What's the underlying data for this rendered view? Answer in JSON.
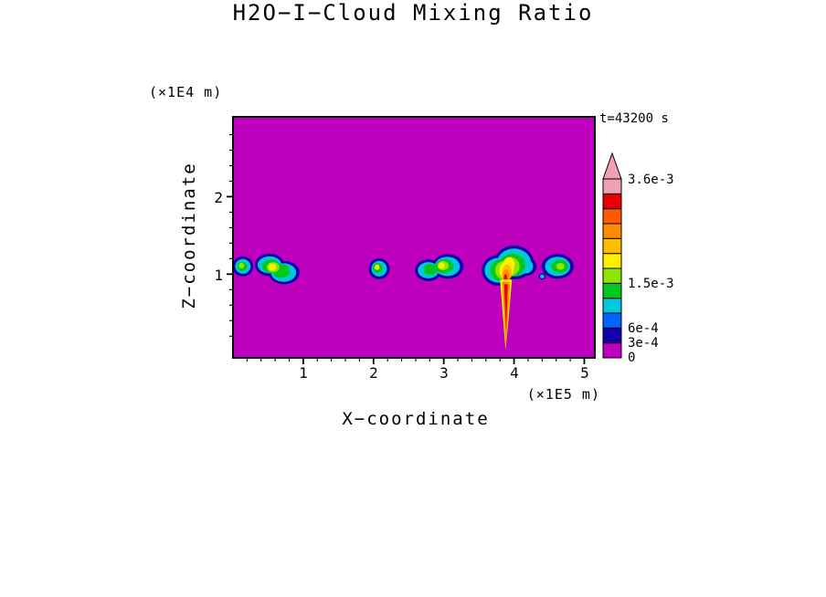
{
  "page": {
    "background": "#FFFFFF"
  },
  "chart_data": {
    "type": "heatmap",
    "title": "H2O−I−Cloud Mixing Ratio",
    "xlabel": "X−coordinate",
    "ylabel": "Z−coordinate",
    "x_units_label": "(×1E5 m)",
    "y_units_label": "(×1E4 m)",
    "time_label": "t=43200 s",
    "x_ticks": [
      "1",
      "2",
      "3",
      "4",
      "5"
    ],
    "y_ticks": [
      "1",
      "2"
    ],
    "xlim": [
      0,
      5.15
    ],
    "zlim": [
      -0.08,
      3.03
    ],
    "grid": false,
    "background_value": 0,
    "background_color": "#BE00BE",
    "colorbar": {
      "units": "mixing ratio",
      "levels": [
        0,
        0.0003,
        0.0006,
        0.0009,
        0.0012,
        0.0015,
        0.0018,
        0.0021,
        0.0024,
        0.0027,
        0.003,
        0.0033,
        0.0036
      ],
      "colors": [
        "#BE00BE",
        "#1400AA",
        "#0064FF",
        "#00C8DC",
        "#00C81E",
        "#8CE600",
        "#FFF000",
        "#FFBE00",
        "#FF8C00",
        "#FF5A00",
        "#E60000",
        "#F0A0B4"
      ],
      "over_color": "#F0A0B4",
      "labels": [
        "3.6e-3",
        "1.5e-3",
        "6e-4",
        "3e-4",
        "0"
      ]
    },
    "clouds": [
      {
        "name": "cloud-1",
        "shapes": [
          {
            "e": [
              0.14,
              1.1,
              0.15,
              0.13,
              "#1400AA"
            ]
          },
          {
            "e": [
              0.14,
              1.1,
              0.11,
              0.095,
              "#00C8DC"
            ]
          },
          {
            "e": [
              0.13,
              1.1,
              0.07,
              0.06,
              "#00C81E"
            ]
          },
          {
            "e": [
              0.12,
              1.11,
              0.04,
              0.035,
              "#8CE600"
            ]
          }
        ]
      },
      {
        "name": "cloud-2",
        "shapes": [
          {
            "e": [
              0.52,
              1.12,
              0.21,
              0.145,
              "#1400AA"
            ]
          },
          {
            "e": [
              0.73,
              1.02,
              0.22,
              0.15,
              "#1400AA"
            ]
          },
          {
            "e": [
              0.52,
              1.12,
              0.17,
              0.11,
              "#00C8DC"
            ]
          },
          {
            "e": [
              0.72,
              1.02,
              0.18,
              0.12,
              "#00C8DC"
            ]
          },
          {
            "e": [
              0.54,
              1.1,
              0.13,
              0.085,
              "#00C81E"
            ]
          },
          {
            "e": [
              0.69,
              1.04,
              0.12,
              0.09,
              "#00C81E"
            ]
          },
          {
            "e": [
              0.57,
              1.09,
              0.09,
              0.065,
              "#8CE600"
            ]
          },
          {
            "e": [
              0.56,
              1.09,
              0.055,
              0.045,
              "#FFF000"
            ]
          }
        ]
      },
      {
        "name": "cloud-3",
        "shapes": [
          {
            "e": [
              2.08,
              1.07,
              0.15,
              0.135,
              "#1400AA"
            ]
          },
          {
            "e": [
              2.08,
              1.07,
              0.11,
              0.1,
              "#00C8DC"
            ]
          },
          {
            "e": [
              2.06,
              1.08,
              0.07,
              0.065,
              "#00C81E"
            ]
          },
          {
            "e": [
              2.05,
              1.09,
              0.035,
              0.035,
              "#FFF000"
            ]
          }
        ]
      },
      {
        "name": "cloud-4",
        "shapes": [
          {
            "e": [
              2.78,
              1.05,
              0.19,
              0.14,
              "#1400AA"
            ]
          },
          {
            "e": [
              3.06,
              1.1,
              0.22,
              0.16,
              "#1400AA"
            ]
          },
          {
            "e": [
              2.78,
              1.05,
              0.15,
              0.105,
              "#00C8DC"
            ]
          },
          {
            "e": [
              3.05,
              1.1,
              0.18,
              0.125,
              "#00C8DC"
            ]
          },
          {
            "e": [
              2.81,
              1.06,
              0.1,
              0.07,
              "#00C81E"
            ]
          },
          {
            "e": [
              3.01,
              1.1,
              0.13,
              0.09,
              "#00C81E"
            ]
          },
          {
            "e": [
              2.99,
              1.11,
              0.08,
              0.06,
              "#8CE600"
            ]
          },
          {
            "e": [
              2.97,
              1.11,
              0.045,
              0.04,
              "#FFF000"
            ]
          }
        ]
      },
      {
        "name": "cloud-5-main-cell",
        "shapes": [
          {
            "e": [
              3.78,
              1.05,
              0.24,
              0.2,
              "#1400AA"
            ]
          },
          {
            "e": [
              4.0,
              1.15,
              0.28,
              0.22,
              "#1400AA"
            ]
          },
          {
            "e": [
              4.18,
              1.1,
              0.14,
              0.12,
              "#1400AA"
            ]
          },
          {
            "e": [
              3.78,
              1.05,
              0.2,
              0.16,
              "#00C8DC"
            ]
          },
          {
            "e": [
              4.0,
              1.15,
              0.24,
              0.18,
              "#00C8DC"
            ]
          },
          {
            "e": [
              4.17,
              1.1,
              0.1,
              0.09,
              "#00C8DC"
            ]
          },
          {
            "e": [
              3.82,
              1.05,
              0.16,
              0.14,
              "#00C81E"
            ]
          },
          {
            "e": [
              3.98,
              1.12,
              0.18,
              0.15,
              "#00C81E"
            ]
          },
          {
            "e": [
              3.86,
              1.05,
              0.13,
              0.12,
              "#8CE600"
            ]
          },
          {
            "e": [
              3.95,
              1.1,
              0.13,
              0.12,
              "#8CE600"
            ]
          },
          {
            "e": [
              3.89,
              1.05,
              0.1,
              0.11,
              "#FFF000"
            ]
          },
          {
            "e": [
              3.93,
              1.12,
              0.08,
              0.1,
              "#FFF000"
            ]
          },
          {
            "e": [
              3.9,
              1.02,
              0.07,
              0.1,
              "#FFBE00"
            ]
          },
          {
            "e": [
              3.89,
              0.98,
              0.05,
              0.08,
              "#FF8C00"
            ]
          },
          {
            "e": [
              3.88,
              0.95,
              0.025,
              0.05,
              "#E60000"
            ]
          },
          {
            "p": [
              [
                3.8,
                0.93
              ],
              [
                3.97,
                0.93
              ],
              [
                3.92,
                0.4
              ],
              [
                3.88,
                0.02
              ]
            ],
            "c": "#FFF000"
          },
          {
            "p": [
              [
                3.83,
                0.9
              ],
              [
                3.945,
                0.9
              ],
              [
                3.91,
                0.42
              ],
              [
                3.885,
                0.06
              ]
            ],
            "c": "#FF8C00"
          },
          {
            "p": [
              [
                3.86,
                0.87
              ],
              [
                3.91,
                0.87
              ],
              [
                3.895,
                0.45
              ],
              [
                3.888,
                0.25
              ]
            ],
            "c": "#E60000"
          }
        ]
      },
      {
        "name": "cloud-6",
        "shapes": [
          {
            "e": [
              4.4,
              0.97,
              0.05,
              0.04,
              "#1400AA"
            ]
          },
          {
            "e": [
              4.4,
              0.97,
              0.03,
              0.025,
              "#00C8DC"
            ]
          },
          {
            "e": [
              4.62,
              1.1,
              0.23,
              0.16,
              "#1400AA"
            ]
          },
          {
            "e": [
              4.62,
              1.1,
              0.18,
              0.125,
              "#00C8DC"
            ]
          },
          {
            "e": [
              4.65,
              1.1,
              0.12,
              0.085,
              "#00C81E"
            ]
          },
          {
            "e": [
              4.66,
              1.1,
              0.06,
              0.045,
              "#8CE600"
            ]
          }
        ]
      }
    ]
  }
}
